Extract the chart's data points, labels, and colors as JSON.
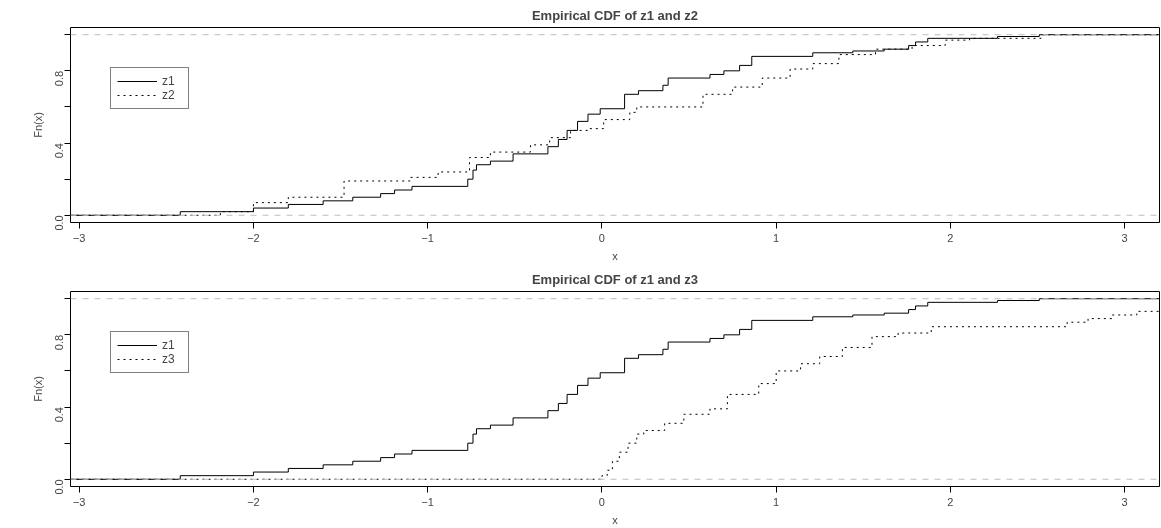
{
  "chart_data": [
    {
      "type": "step",
      "title": "Empirical CDF of z1 and z2",
      "xlabel": "x",
      "ylabel": "Fn(x)",
      "xlim": [
        -3.05,
        3.2
      ],
      "xticks": [
        -3,
        -2,
        -1,
        0,
        1,
        2,
        3
      ],
      "ylim": [
        -0.04,
        1.04
      ],
      "yticks": [
        {
          "value": 0,
          "label": "0.0"
        },
        {
          "value": 0.2,
          "label": null
        },
        {
          "value": 0.4,
          "label": "0.4"
        },
        {
          "value": 0.6,
          "label": null
        },
        {
          "value": 0.8,
          "label": "0.8"
        },
        {
          "value": 1,
          "label": null
        }
      ],
      "grid": false,
      "legend": "top left",
      "marker": "none",
      "ref_lines": [
        {
          "axis": "y",
          "value": 0,
          "color": "#bebebe",
          "line_style": "dashed"
        },
        {
          "axis": "y",
          "value": 1,
          "color": "#bebebe",
          "line_style": "dashed"
        }
      ],
      "series": [
        {
          "name": "z1",
          "color": "#000000",
          "line_style": "solid",
          "x": [
            -3.05,
            -2.42,
            -2.0,
            -1.8,
            -1.6,
            -1.43,
            -1.27,
            -1.19,
            -1.09,
            -0.77,
            -0.74,
            -0.72,
            -0.64,
            -0.51,
            -0.31,
            -0.25,
            -0.2,
            -0.14,
            -0.08,
            -0.01,
            0.13,
            0.21,
            0.35,
            0.38,
            0.62,
            0.7,
            0.79,
            0.86,
            1.21,
            1.44,
            1.62,
            1.76,
            1.8,
            1.87,
            2.27,
            2.51,
            3.2
          ],
          "values": [
            0,
            0.02,
            0.04,
            0.06,
            0.08,
            0.1,
            0.12,
            0.14,
            0.16,
            0.2,
            0.25,
            0.28,
            0.3,
            0.34,
            0.38,
            0.42,
            0.47,
            0.52,
            0.56,
            0.59,
            0.67,
            0.69,
            0.72,
            0.76,
            0.78,
            0.8,
            0.83,
            0.88,
            0.9,
            0.91,
            0.92,
            0.94,
            0.96,
            0.98,
            0.99,
            1.0,
            1.0
          ]
        },
        {
          "name": "z2",
          "color": "#000000",
          "line_style": "dotted",
          "x": [
            -3.05,
            -2.19,
            -2.0,
            -1.8,
            -1.48,
            -1.1,
            -0.94,
            -0.76,
            -0.64,
            -0.41,
            -0.3,
            -0.18,
            -0.08,
            0.01,
            0.16,
            0.2,
            0.58,
            0.75,
            0.92,
            1.08,
            1.21,
            1.36,
            1.57,
            1.78,
            1.97,
            2.11,
            2.52,
            3.2
          ],
          "values": [
            0,
            0.02,
            0.07,
            0.1,
            0.19,
            0.21,
            0.24,
            0.32,
            0.35,
            0.39,
            0.43,
            0.47,
            0.48,
            0.53,
            0.57,
            0.6,
            0.67,
            0.71,
            0.76,
            0.81,
            0.84,
            0.89,
            0.92,
            0.94,
            0.97,
            0.98,
            1.0,
            1.0
          ]
        }
      ]
    },
    {
      "type": "step",
      "title": "Empirical CDF of z1 and z3",
      "xlabel": "x",
      "ylabel": "Fn(x)",
      "xlim": [
        -3.05,
        3.2
      ],
      "xticks": [
        -3,
        -2,
        -1,
        0,
        1,
        2,
        3
      ],
      "ylim": [
        -0.04,
        1.04
      ],
      "yticks": [
        {
          "value": 0,
          "label": "0.0"
        },
        {
          "value": 0.2,
          "label": null
        },
        {
          "value": 0.4,
          "label": "0.4"
        },
        {
          "value": 0.6,
          "label": null
        },
        {
          "value": 0.8,
          "label": "0.8"
        },
        {
          "value": 1,
          "label": null
        }
      ],
      "grid": false,
      "legend": "top left",
      "marker": "none",
      "ref_lines": [
        {
          "axis": "y",
          "value": 0,
          "color": "#bebebe",
          "line_style": "dashed"
        },
        {
          "axis": "y",
          "value": 1,
          "color": "#bebebe",
          "line_style": "dashed"
        }
      ],
      "series": [
        {
          "name": "z1",
          "color": "#000000",
          "line_style": "solid",
          "x": [
            -3.05,
            -2.42,
            -2.0,
            -1.8,
            -1.6,
            -1.43,
            -1.27,
            -1.19,
            -1.09,
            -0.77,
            -0.74,
            -0.72,
            -0.64,
            -0.51,
            -0.31,
            -0.25,
            -0.2,
            -0.14,
            -0.08,
            -0.01,
            0.13,
            0.21,
            0.35,
            0.38,
            0.62,
            0.7,
            0.79,
            0.86,
            1.21,
            1.44,
            1.62,
            1.76,
            1.8,
            1.87,
            2.27,
            2.51,
            3.2
          ],
          "values": [
            0,
            0.02,
            0.04,
            0.06,
            0.08,
            0.1,
            0.12,
            0.14,
            0.16,
            0.2,
            0.25,
            0.28,
            0.3,
            0.34,
            0.38,
            0.42,
            0.47,
            0.52,
            0.56,
            0.59,
            0.67,
            0.69,
            0.72,
            0.76,
            0.78,
            0.8,
            0.83,
            0.88,
            0.9,
            0.91,
            0.92,
            0.94,
            0.96,
            0.98,
            0.99,
            1.0,
            1.0
          ]
        },
        {
          "name": "z3",
          "color": "#000000",
          "line_style": "dotted",
          "x": [
            -3.05,
            0.0,
            0.03,
            0.06,
            0.1,
            0.15,
            0.2,
            0.24,
            0.36,
            0.47,
            0.62,
            0.72,
            0.9,
            1.0,
            1.14,
            1.25,
            1.38,
            1.55,
            1.7,
            1.89,
            2.67,
            2.79,
            2.93,
            3.07,
            3.2
          ],
          "values": [
            0,
            0.02,
            0.05,
            0.1,
            0.15,
            0.2,
            0.25,
            0.27,
            0.31,
            0.36,
            0.39,
            0.47,
            0.53,
            0.6,
            0.64,
            0.68,
            0.73,
            0.79,
            0.81,
            0.845,
            0.87,
            0.89,
            0.91,
            0.93,
            0.93
          ]
        }
      ]
    }
  ]
}
